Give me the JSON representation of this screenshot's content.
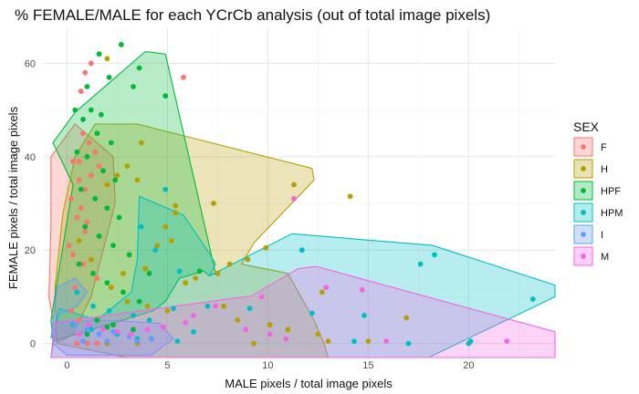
{
  "chart_data": {
    "type": "scatter",
    "title": "% FEMALE/MALE for each YCrCb analysis (out of total image pixels)",
    "xlabel": "MALE pixels / total image pixels",
    "ylabel": "FEMALE pixels / total image pixels",
    "xlim": [
      -1.2,
      24.3
    ],
    "ylim": [
      -3.0,
      67.5
    ],
    "x_ticks": [
      0,
      5,
      10,
      15,
      20
    ],
    "y_ticks": [
      0,
      20,
      40,
      60
    ],
    "grid": true,
    "legend": {
      "title": "SEX",
      "position": "right"
    },
    "series": [
      {
        "name": "F",
        "color": "#F8766D",
        "points": [
          [
            1.2,
            60
          ],
          [
            0.9,
            58
          ],
          [
            0.7,
            54
          ],
          [
            5.8,
            57
          ],
          [
            0.8,
            45
          ],
          [
            1.1,
            43
          ],
          [
            1.4,
            41
          ],
          [
            0.3,
            39
          ],
          [
            0.6,
            39
          ],
          [
            1.6,
            38
          ],
          [
            1.2,
            36
          ],
          [
            0.6,
            35
          ],
          [
            0.9,
            33
          ],
          [
            0.2,
            31
          ],
          [
            0.7,
            29
          ],
          [
            0.5,
            27
          ],
          [
            1.0,
            26
          ],
          [
            0.9,
            24
          ],
          [
            0.1,
            21
          ],
          [
            0.3,
            19
          ],
          [
            0.8,
            17
          ],
          [
            1.5,
            14
          ],
          [
            0.4,
            12
          ],
          [
            11.3,
            31
          ],
          [
            0.2,
            7
          ],
          [
            0.6,
            5
          ],
          [
            0.3,
            4
          ],
          [
            0.5,
            0
          ],
          [
            1.0,
            0
          ],
          [
            1.5,
            0
          ],
          [
            2.0,
            0
          ]
        ]
      },
      {
        "name": "H",
        "color": "#B79F00",
        "points": [
          [
            2.0,
            61
          ],
          [
            3.7,
            43
          ],
          [
            14.1,
            31.5
          ],
          [
            11.3,
            34
          ],
          [
            7.3,
            30
          ],
          [
            5.4,
            28
          ],
          [
            5.4,
            29.5
          ],
          [
            4.9,
            25
          ],
          [
            5.2,
            22
          ],
          [
            4.5,
            21
          ],
          [
            3.0,
            38
          ],
          [
            2.5,
            36
          ],
          [
            2.0,
            34
          ],
          [
            3.5,
            35
          ],
          [
            9.9,
            20.5
          ],
          [
            9.0,
            18
          ],
          [
            8.1,
            17
          ],
          [
            7.5,
            15
          ],
          [
            6.4,
            14
          ],
          [
            5.9,
            13
          ],
          [
            3.9,
            16
          ],
          [
            2.8,
            15
          ],
          [
            2.2,
            12
          ],
          [
            1.2,
            18
          ],
          [
            0.6,
            22
          ],
          [
            3.0,
            9
          ],
          [
            4.0,
            8
          ],
          [
            5.0,
            7
          ],
          [
            7.8,
            8
          ],
          [
            8.5,
            5
          ],
          [
            10.1,
            4
          ],
          [
            11.0,
            3
          ],
          [
            12.7,
            11
          ],
          [
            16.9,
            5.5
          ],
          [
            13.0,
            0.5
          ],
          [
            15.0,
            0.5
          ],
          [
            12.5,
            2
          ],
          [
            2.0,
            0
          ],
          [
            3.5,
            0
          ],
          [
            9.3,
            0
          ]
        ]
      },
      {
        "name": "HPF",
        "color": "#00BA38",
        "points": [
          [
            2.7,
            64
          ],
          [
            1.6,
            62
          ],
          [
            3.6,
            59
          ],
          [
            1.0,
            55
          ],
          [
            2.1,
            57
          ],
          [
            3.3,
            55
          ],
          [
            0.4,
            50
          ],
          [
            1.7,
            49
          ],
          [
            1.2,
            50
          ],
          [
            4.9,
            53
          ],
          [
            0.8,
            48
          ],
          [
            1.5,
            45
          ],
          [
            2.2,
            43
          ],
          [
            0.5,
            41
          ],
          [
            1.0,
            40
          ],
          [
            1.8,
            37
          ],
          [
            2.4,
            35
          ],
          [
            0.7,
            33
          ],
          [
            1.4,
            31
          ],
          [
            2.0,
            29
          ],
          [
            2.6,
            27
          ],
          [
            0.9,
            25
          ],
          [
            1.6,
            23
          ],
          [
            2.3,
            21
          ],
          [
            3.1,
            19
          ],
          [
            0.6,
            17
          ],
          [
            1.3,
            15
          ],
          [
            2.0,
            13
          ],
          [
            2.8,
            11
          ],
          [
            3.6,
            9
          ],
          [
            6.6,
            15.5
          ],
          [
            4.1,
            15
          ],
          [
            1.5,
            5
          ],
          [
            2.3,
            4
          ],
          [
            3.3,
            3
          ],
          [
            4.2,
            1
          ],
          [
            1.0,
            2
          ],
          [
            2.0,
            3.5
          ]
        ]
      },
      {
        "name": "HPM",
        "color": "#00BFC4",
        "points": [
          [
            4.9,
            33
          ],
          [
            3.7,
            25
          ],
          [
            4.4,
            20
          ],
          [
            11.7,
            20
          ],
          [
            18.3,
            19
          ],
          [
            17.6,
            17
          ],
          [
            23.2,
            9.5
          ],
          [
            5.6,
            15.5
          ],
          [
            7.0,
            8
          ],
          [
            5.3,
            7.5
          ],
          [
            12.2,
            6.5
          ],
          [
            14.8,
            6
          ],
          [
            14.3,
            0.5
          ],
          [
            17.0,
            0
          ],
          [
            20.1,
            0.5
          ],
          [
            20.0,
            0
          ],
          [
            2.1,
            7
          ],
          [
            3.3,
            6
          ],
          [
            4.1,
            5
          ],
          [
            1.3,
            8
          ],
          [
            0.3,
            4
          ],
          [
            1.2,
            3
          ],
          [
            2.5,
            2
          ],
          [
            3.5,
            1
          ],
          [
            5.5,
            0.5
          ],
          [
            6.3,
            2.5
          ],
          [
            0.5,
            11
          ],
          [
            9.1,
            7.5
          ]
        ]
      },
      {
        "name": "I",
        "color": "#619CFF",
        "points": [
          [
            0.4,
            4
          ],
          [
            1.0,
            3
          ],
          [
            1.6,
            2
          ],
          [
            2.3,
            2.5
          ],
          [
            3.1,
            1.5
          ],
          [
            0.8,
            0.5
          ],
          [
            2.0,
            0.5
          ],
          [
            3.5,
            0.5
          ],
          [
            4.2,
            1
          ]
        ]
      },
      {
        "name": "M",
        "color": "#F564E3",
        "points": [
          [
            11.3,
            31
          ],
          [
            12.9,
            12
          ],
          [
            14.7,
            11.5
          ],
          [
            21.9,
            0.5
          ],
          [
            9.7,
            10
          ],
          [
            7.4,
            8
          ],
          [
            6.3,
            6
          ],
          [
            5.9,
            4.5
          ],
          [
            4.8,
            3.5
          ],
          [
            4.0,
            3
          ],
          [
            3.2,
            2
          ],
          [
            2.5,
            2.5
          ],
          [
            1.8,
            3
          ],
          [
            1.1,
            4
          ],
          [
            0.6,
            2
          ],
          [
            8.9,
            3
          ],
          [
            10.1,
            2
          ],
          [
            10.9,
            1
          ],
          [
            15.9,
            0.5
          ]
        ]
      }
    ],
    "hulls": [
      {
        "series": "F",
        "points": [
          [
            -0.8,
            40
          ],
          [
            0.4,
            47
          ],
          [
            2.3,
            40
          ],
          [
            2.4,
            30
          ],
          [
            1.8,
            20
          ],
          [
            1.2,
            10
          ],
          [
            0.3,
            2
          ],
          [
            -0.5,
            0
          ],
          [
            -0.9,
            10
          ],
          [
            -0.8,
            25
          ]
        ]
      },
      {
        "series": "H",
        "points": [
          [
            1.4,
            47
          ],
          [
            3.5,
            47
          ],
          [
            12.2,
            37.5
          ],
          [
            12.3,
            35
          ],
          [
            9.3,
            21.5
          ],
          [
            8.7,
            17
          ],
          [
            11.0,
            15
          ],
          [
            12.3,
            5
          ],
          [
            12.8,
            0
          ],
          [
            13.0,
            -3
          ],
          [
            3.0,
            -3
          ],
          [
            -0.5,
            0
          ],
          [
            -0.6,
            12
          ],
          [
            -0.2,
            28
          ],
          [
            0.4,
            40
          ]
        ]
      },
      {
        "series": "HPF",
        "points": [
          [
            0.4,
            49.5
          ],
          [
            3.9,
            62.5
          ],
          [
            4.9,
            62
          ],
          [
            7.4,
            15
          ],
          [
            7.1,
            14.5
          ],
          [
            6.8,
            15.5
          ],
          [
            5.6,
            14
          ],
          [
            4.9,
            9
          ],
          [
            4.3,
            7
          ],
          [
            -0.7,
            0.5
          ],
          [
            -0.8,
            5
          ],
          [
            0.3,
            34
          ],
          [
            -0.7,
            43
          ]
        ]
      },
      {
        "series": "HPM",
        "points": [
          [
            3.6,
            31.5
          ],
          [
            5.8,
            27.5
          ],
          [
            7.1,
            19.2
          ],
          [
            7.4,
            17
          ],
          [
            7.1,
            14.5
          ],
          [
            11.2,
            23.5
          ],
          [
            18.2,
            21
          ],
          [
            24.3,
            12.5
          ],
          [
            24.3,
            10
          ],
          [
            18.0,
            -3
          ],
          [
            -0.8,
            -3
          ],
          [
            -0.4,
            7.5
          ],
          [
            1.5,
            5
          ],
          [
            3.2,
            11
          ],
          [
            3.5,
            18
          ]
        ]
      },
      {
        "series": "I",
        "points": [
          [
            -0.5,
            12
          ],
          [
            0.4,
            14
          ],
          [
            1.0,
            11
          ],
          [
            0.5,
            8
          ],
          [
            -0.5,
            6
          ],
          [
            -0.8,
            1
          ]
        ]
      },
      {
        "series": "I",
        "points": [
          [
            -0.5,
            4.5
          ],
          [
            2.0,
            5
          ],
          [
            4.6,
            4.3
          ],
          [
            5.3,
            1
          ],
          [
            4.2,
            -2.5
          ],
          [
            0.0,
            -2.5
          ],
          [
            -0.7,
            0
          ]
        ]
      },
      {
        "series": "M",
        "points": [
          [
            -0.6,
            4.5
          ],
          [
            9.2,
            10.2
          ],
          [
            11.5,
            16
          ],
          [
            12.4,
            16.5
          ],
          [
            24.3,
            2.5
          ],
          [
            24.3,
            -3
          ],
          [
            -0.8,
            -3
          ]
        ]
      }
    ]
  }
}
